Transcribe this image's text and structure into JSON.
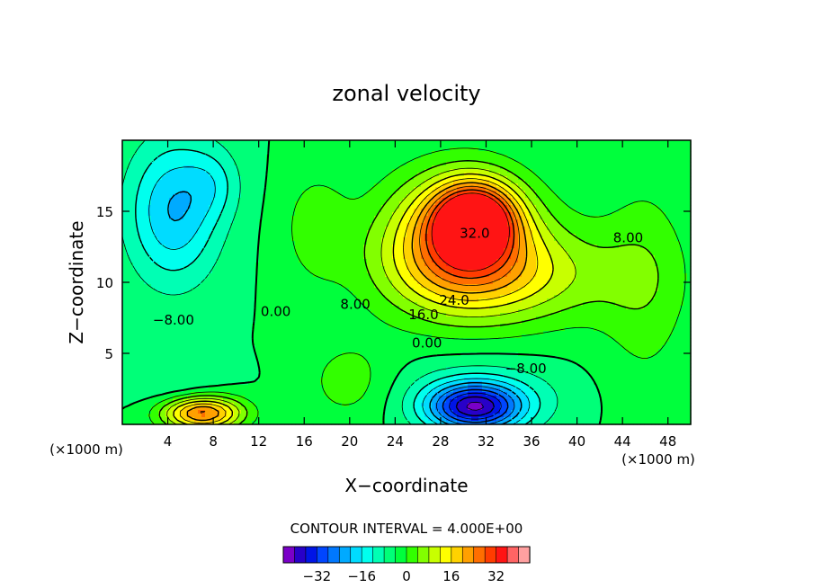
{
  "chart_data": {
    "type": "heatmap",
    "title": "zonal velocity",
    "xlabel": "X−coordinate",
    "ylabel": "Z−coordinate",
    "x_unit_left": "(×1000 m)",
    "x_unit_right": "(×1000 m)",
    "xlim": [
      0,
      50
    ],
    "ylim": [
      0,
      20
    ],
    "x_ticks": [
      4,
      8,
      12,
      16,
      20,
      24,
      28,
      32,
      36,
      40,
      44,
      48
    ],
    "y_ticks": [
      5,
      10,
      15
    ],
    "contour_interval_text": "CONTOUR INTERVAL = 4.000E+00",
    "contour_labels": [
      {
        "text": "−8.00",
        "x": 4.5,
        "y": 7.4
      },
      {
        "text": "0.00",
        "x": 13.5,
        "y": 8.0
      },
      {
        "text": "8.00",
        "x": 20.5,
        "y": 8.5
      },
      {
        "text": "16.0",
        "x": 26.5,
        "y": 7.8
      },
      {
        "text": "24.0",
        "x": 29.2,
        "y": 8.8
      },
      {
        "text": "32.0",
        "x": 31.0,
        "y": 13.5
      },
      {
        "text": "8.00",
        "x": 44.5,
        "y": 13.2
      },
      {
        "text": "0.00",
        "x": 26.8,
        "y": 5.8
      },
      {
        "text": "−8.00",
        "x": 35.5,
        "y": 4.0
      }
    ],
    "blobs": [
      {
        "x": 31,
        "y": 14.5,
        "value": 34,
        "sx": 3.5,
        "sy": 2.5
      },
      {
        "x": 29.5,
        "y": 13,
        "value": 26,
        "sx": 6.5,
        "sy": 4.5
      },
      {
        "x": 34,
        "y": 10.5,
        "value": 14,
        "sx": 10,
        "sy": 3.5
      },
      {
        "x": 7,
        "y": 0.8,
        "value": 30,
        "sx": 3.5,
        "sy": 1.2
      },
      {
        "x": 4.5,
        "y": 15,
        "value": -16,
        "sx": 4,
        "sy": 5
      },
      {
        "x": 8,
        "y": 17,
        "value": -6,
        "sx": 2.5,
        "sy": 2.5
      },
      {
        "x": 31,
        "y": 1.2,
        "value": -30,
        "sx": 4,
        "sy": 1.6
      },
      {
        "x": 31.5,
        "y": 2,
        "value": -8,
        "sx": 7,
        "sy": 2.5
      },
      {
        "x": 5,
        "y": 2.5,
        "value": -4,
        "sx": 4,
        "sy": 2
      },
      {
        "x": 46,
        "y": 10,
        "value": 6,
        "sx": 4,
        "sy": 8
      },
      {
        "x": 20,
        "y": 3,
        "value": 6,
        "sx": 4,
        "sy": 3
      },
      {
        "x": 17,
        "y": 14,
        "value": 6,
        "sx": 3,
        "sy": 4
      }
    ],
    "colorbar": {
      "levels": [
        -36,
        -32,
        -28,
        -24,
        -20,
        -16,
        -12,
        -8,
        -4,
        0,
        4,
        8,
        12,
        16,
        20,
        24,
        28,
        32,
        36
      ],
      "tick_labels": [
        "−32",
        "−16",
        "0",
        "16",
        "32"
      ],
      "tick_values": [
        -32,
        -16,
        0,
        16,
        32
      ],
      "colors": [
        "#7a00c8",
        "#2800c8",
        "#0014e6",
        "#0046ff",
        "#0078ff",
        "#00aaff",
        "#00dcff",
        "#00ffee",
        "#00ffb4",
        "#00ff78",
        "#00ff3c",
        "#32ff00",
        "#82ff00",
        "#c8ff00",
        "#ffff00",
        "#ffd200",
        "#ffa000",
        "#ff6e00",
        "#ff3c00",
        "#ff1414",
        "#ff6464",
        "#ffa0a0"
      ]
    }
  }
}
